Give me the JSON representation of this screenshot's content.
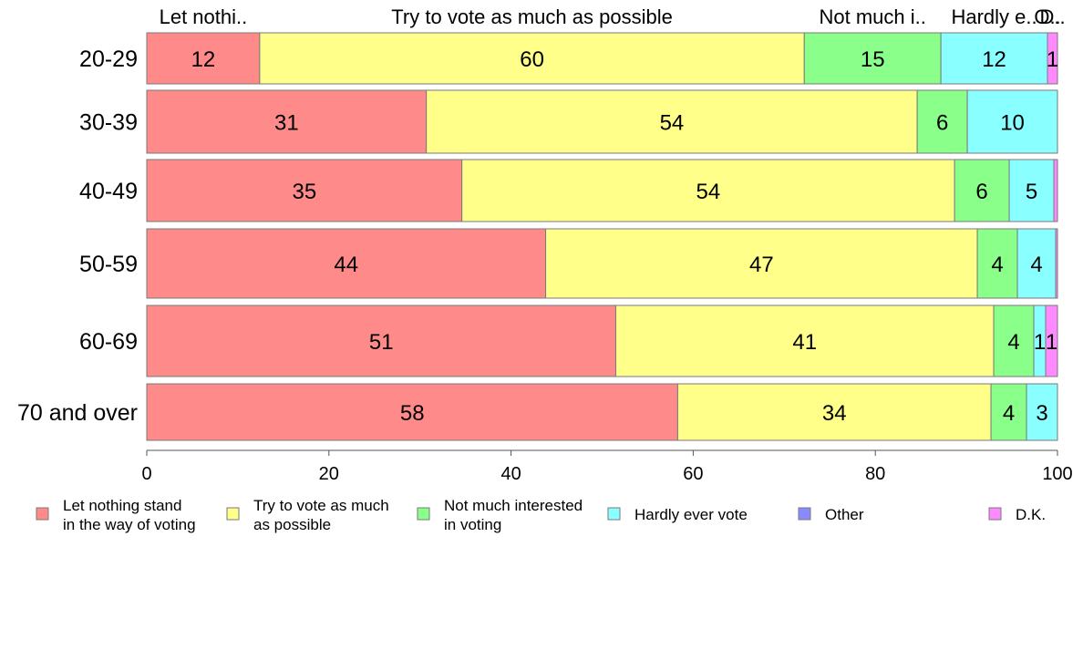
{
  "chart_data": {
    "type": "bar",
    "orientation": "horizontal",
    "stacked": true,
    "categories": [
      "20-29",
      "30-39",
      "40-49",
      "50-59",
      "60-69",
      "70 and over"
    ],
    "series": [
      {
        "name": "Let nothing stand in the way of voting",
        "legend_lines": [
          "Let nothing stand",
          "in the way of voting"
        ],
        "top_label": "Let nothi..",
        "color": "#FF8A8A",
        "values": [
          12.4,
          30.7,
          34.6,
          43.8,
          51.5,
          58.3
        ],
        "labels": [
          "12",
          "31",
          "35",
          "44",
          "51",
          "58"
        ]
      },
      {
        "name": "Try to vote as much as possible",
        "legend_lines": [
          "Try to vote as much",
          "as possible"
        ],
        "top_label": "Try to vote as much as possible",
        "color": "#FFFF8A",
        "values": [
          59.8,
          53.9,
          54.1,
          47.4,
          41.5,
          34.4
        ],
        "labels": [
          "60",
          "54",
          "54",
          "47",
          "41",
          "34"
        ]
      },
      {
        "name": "Not much interested in voting",
        "legend_lines": [
          "Not much interested",
          "in voting"
        ],
        "top_label": "Not much i..",
        "color": "#8AFF8A",
        "values": [
          15.0,
          5.5,
          6.0,
          4.4,
          4.4,
          3.9
        ],
        "labels": [
          "15",
          "6",
          "6",
          "4",
          "4",
          "4"
        ]
      },
      {
        "name": "Hardly ever vote",
        "legend_lines": [
          "Hardly ever vote"
        ],
        "top_label": "Hardly e..",
        "color": "#8AFFFF",
        "values": [
          11.7,
          9.9,
          4.9,
          4.2,
          1.3,
          3.4
        ],
        "labels": [
          "12",
          "10",
          "5",
          "4",
          "1",
          "3"
        ]
      },
      {
        "name": "Other",
        "legend_lines": [
          "Other"
        ],
        "top_label": "O..",
        "color": "#8A8AFF",
        "values": [
          0,
          0,
          0,
          0,
          0,
          0
        ],
        "labels": [
          "",
          "",
          "",
          "",
          "",
          ""
        ]
      },
      {
        "name": "D.K.",
        "legend_lines": [
          "D.K."
        ],
        "top_label": "D..",
        "color": "#FF8AFF",
        "values": [
          1.1,
          0,
          0.4,
          0.2,
          1.3,
          0
        ],
        "labels": [
          "1",
          "",
          "",
          "",
          "1",
          ""
        ]
      }
    ],
    "xlim": [
      0,
      100
    ],
    "xticks": [
      "0",
      "20",
      "40",
      "60",
      "80",
      "100"
    ],
    "legend_position": "bottom",
    "grid": false
  }
}
